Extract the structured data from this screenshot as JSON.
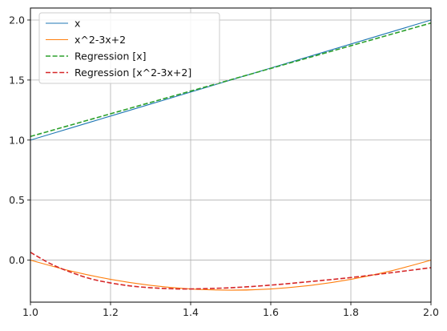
{
  "chart_data": {
    "type": "line",
    "title": "",
    "xlabel": "",
    "ylabel": "",
    "xlim": [
      1.0,
      2.0
    ],
    "ylim": [
      -0.35,
      2.1
    ],
    "grid": true,
    "legend_position": "top-left",
    "x_ticks": [
      "1.0",
      "1.2",
      "1.4",
      "1.6",
      "1.8",
      "2.0"
    ],
    "y_ticks": [
      "0.0",
      "0.5",
      "1.0",
      "1.5",
      "2.0"
    ],
    "series": [
      {
        "name": "x",
        "color": "#1f77b4",
        "style": "solid",
        "x": [
          1.0,
          1.1,
          1.2,
          1.3,
          1.4,
          1.5,
          1.6,
          1.7,
          1.8,
          1.9,
          2.0
        ],
        "y": [
          1.0,
          1.1,
          1.2,
          1.3,
          1.4,
          1.5,
          1.6,
          1.7,
          1.8,
          1.9,
          2.0
        ]
      },
      {
        "name": "x^2-3x+2",
        "color": "#ff7f0e",
        "style": "solid",
        "x": [
          1.0,
          1.1,
          1.2,
          1.3,
          1.4,
          1.5,
          1.6,
          1.7,
          1.8,
          1.9,
          2.0
        ],
        "y": [
          0.0,
          -0.09,
          -0.16,
          -0.21,
          -0.24,
          -0.25,
          -0.24,
          -0.21,
          -0.16,
          -0.09,
          0.0
        ]
      },
      {
        "name": "Regression [x]",
        "color": "#2ca02c",
        "style": "dashed",
        "x": [
          1.0,
          2.0
        ],
        "y": [
          1.03,
          1.975
        ]
      },
      {
        "name": "Regression [x^2-3x+2]",
        "color": "#d62728",
        "style": "dashed",
        "x": [
          1.0,
          1.05,
          1.1,
          1.15,
          1.2,
          1.25,
          1.3,
          1.35,
          1.4,
          1.5,
          1.6,
          1.7,
          1.8,
          1.9,
          2.0
        ],
        "y": [
          0.065,
          -0.03,
          -0.1,
          -0.155,
          -0.19,
          -0.215,
          -0.23,
          -0.238,
          -0.24,
          -0.23,
          -0.208,
          -0.178,
          -0.145,
          -0.105,
          -0.063
        ]
      }
    ]
  }
}
